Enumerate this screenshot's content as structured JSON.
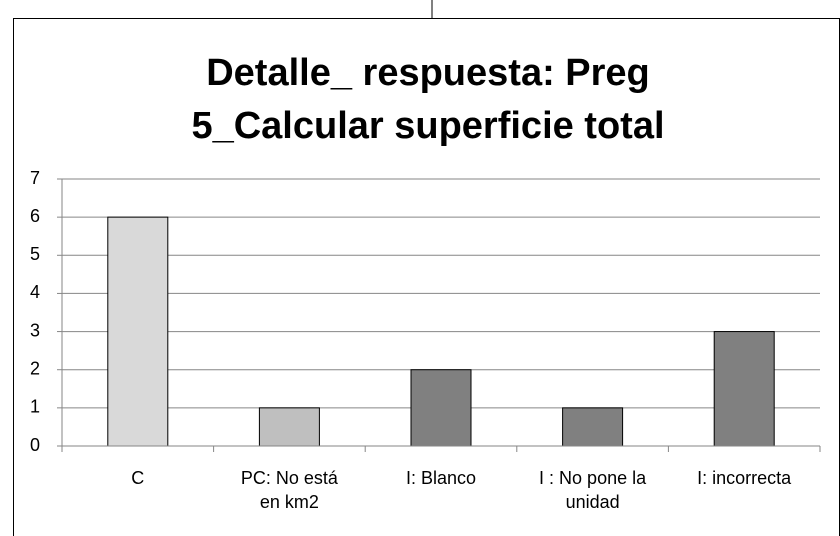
{
  "chart_data": {
    "type": "bar",
    "title": [
      "Detalle_ respuesta: Preg",
      "5_Calcular superficie total"
    ],
    "categories": [
      "C",
      "PC: No está en km2",
      "I: Blanco",
      "I : No pone la unidad",
      "I: incorrecta"
    ],
    "values": [
      6,
      1,
      2,
      1,
      3
    ],
    "colors": [
      "#d9d9d9",
      "#bfbfbf",
      "#808080",
      "#808080",
      "#808080"
    ],
    "ylim": [
      0,
      7
    ],
    "yticks": [
      0,
      1,
      2,
      3,
      4,
      5,
      6,
      7
    ],
    "grid": true
  }
}
